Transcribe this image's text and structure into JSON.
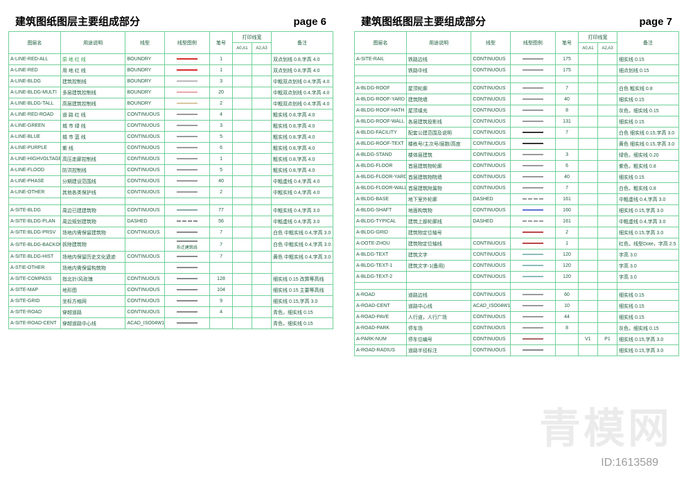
{
  "watermark_main": "青模网",
  "watermark_id": "ID:1613589",
  "header_cols": [
    "图层名",
    "用途说明",
    "线型",
    "线型图例",
    "笔号",
    "A0,A1",
    "A2,A3",
    "备注"
  ],
  "header_group_print": "打印线宽",
  "pages": [
    {
      "title": "建筑图纸图层主要组成部分",
      "pagenum": "page 6",
      "groups": [
        [
          {
            "layer": "A-LINE-RED-ALL",
            "desc": "原 地 红 线",
            "ltype": "BOUNDRY",
            "swatch": "#d62c2c",
            "pen": "1",
            "w1": "",
            "w2": "",
            "note": "双点划线 0.8,字高 4.0",
            "descColor": "#2e9a4a"
          },
          {
            "layer": "A-LINE-RED",
            "desc": "用 地 红 线",
            "ltype": "BOUNDRY",
            "swatch": "#d62c2c",
            "pen": "1",
            "w1": "",
            "w2": "",
            "note": "双点划线 0.8,字高 4.0"
          },
          {
            "layer": "A-LINE-BLDG",
            "desc": "建筑控制线",
            "ltype": "BOUNDRY",
            "swatch": "#b8b8b8",
            "pen": "3",
            "w1": "",
            "w2": "",
            "note": "中粗双点划线 0.4,字高 4.0"
          },
          {
            "layer": "A-LINE-BLDG-MULTI",
            "desc": "多层建筑控制线",
            "ltype": "BOUNDRY",
            "swatch": "#e8a8a8",
            "pen": "20",
            "w1": "",
            "w2": "",
            "note": "中粗双点划线 0.4,字高 4.0"
          },
          {
            "layer": "A-LINE-BLDG-TALL",
            "desc": "高层建筑控制线",
            "ltype": "BOUNDRY",
            "swatch": "#d8c8a0",
            "pen": "2",
            "w1": "",
            "w2": "",
            "note": "中粗双点划线 0.4,字高 4.0"
          },
          {
            "layer": "A-LINE-RED-ROAD",
            "desc": "道 路 红 线",
            "ltype": "CONTINUOUS",
            "swatch": "#999",
            "pen": "4",
            "w1": "",
            "w2": "",
            "note": "粗实线 0.8,字高 4.0"
          },
          {
            "layer": "A-LINE-GREEN",
            "desc": "城 市 绿 线",
            "ltype": "CONTINUOUS",
            "swatch": "#999",
            "pen": "3",
            "w1": "",
            "w2": "",
            "note": "粗实线 0.8,字高 4.0"
          },
          {
            "layer": "A-LINE-BLUE",
            "desc": "城 市 蓝 线",
            "ltype": "CONTINUOUS",
            "swatch": "#999",
            "pen": "5",
            "w1": "",
            "w2": "",
            "note": "粗实线 0.8,字高 4.0"
          },
          {
            "layer": "A-LINE-PURPLE",
            "desc": "紫 线",
            "ltype": "CONTINUOUS",
            "swatch": "#999",
            "pen": "6",
            "w1": "",
            "w2": "",
            "note": "粗实线 0.8,字高 4.0"
          },
          {
            "layer": "A-LINE-HIGHVOLTAGE",
            "desc": "高压走廊控制线",
            "ltype": "CONTINUOUS",
            "swatch": "#999",
            "pen": "1",
            "w1": "",
            "w2": "",
            "note": "粗实线 0.8,字高 4.0"
          },
          {
            "layer": "A-LINE-FLOOD",
            "desc": "防洪控制线",
            "ltype": "CONTINUOUS",
            "swatch": "#999",
            "pen": "5",
            "w1": "",
            "w2": "",
            "note": "粗实线 0.8,字高 4.0"
          },
          {
            "layer": "A-LINE-PHASE",
            "desc": "分期建设范围线",
            "ltype": "CONTINUOUS",
            "swatch": "#999",
            "pen": "40",
            "w1": "",
            "w2": "",
            "note": "中粗虚线 0.4,字高 4.0"
          },
          {
            "layer": "A-LINE-OTHER",
            "desc": "其他各类保护线",
            "ltype": "CONTINUOUS",
            "swatch": "#999",
            "pen": "2",
            "w1": "",
            "w2": "",
            "note": "中粗实线 0.4,字高 4.0"
          }
        ],
        [
          {
            "layer": "A-SITE-BLDG",
            "desc": "周边已建建筑物",
            "ltype": "CONTINUOUS",
            "swatch": "#8aa",
            "pen": "77",
            "w1": "",
            "w2": "",
            "note": "中粗实线 0.4,字高 3.0"
          },
          {
            "layer": "A-SITE-BLDG-PLAN",
            "desc": "周边规划建筑物",
            "ltype": "DASHED",
            "swatch": "#888",
            "pen": "56",
            "w1": "",
            "w2": "",
            "note": "中粗虚线 0.4,字高 3.0"
          },
          {
            "layer": "A-SITE-BLDG-PRSV",
            "desc": "场地内需保留建筑物",
            "ltype": "CONTINUOUS",
            "swatch": "#888",
            "pen": "7",
            "w1": "",
            "w2": "",
            "note": "白色 中粗实线 0.4,字高 3.0"
          },
          {
            "layer": "A-SITE-BLDG-BACKOUT",
            "desc": "拆除建筑物",
            "ltype": "",
            "swatch": "#888",
            "pen": "7",
            "w1": "",
            "w2": "",
            "note": "白色 中粗实线 0.4,字高 3.0",
            "extra": "拆迁建筑线"
          },
          {
            "layer": "A-SITE-BLDG-HIST",
            "desc": "场地内保留历史文化遗迹",
            "ltype": "CONTINUOUS",
            "swatch": "#888",
            "pen": "7",
            "w1": "",
            "w2": "",
            "note": "黄色 中粗实线 0.4,字高 3.0"
          },
          {
            "layer": "A-STIE-OTHER",
            "desc": "场地内需保留构筑物",
            "ltype": "",
            "swatch": "#888",
            "pen": "",
            "w1": "",
            "w2": "",
            "note": ""
          },
          {
            "layer": "A-SITE-COMPASS",
            "desc": "指北针/风玫瑰",
            "ltype": "CONTINUOUS",
            "swatch": "#888",
            "pen": "128",
            "w1": "",
            "w2": "",
            "note": "细实线 0.15 改算等高线"
          },
          {
            "layer": "A-SITE-MAP",
            "desc": "地形图",
            "ltype": "CONTINUOUS",
            "swatch": "#888",
            "pen": "104",
            "w1": "",
            "w2": "",
            "note": "细实线 0.15 主要等高线"
          },
          {
            "layer": "A-SITE-GRID",
            "desc": "坐标方格网",
            "ltype": "CONTINUOUS",
            "swatch": "#888",
            "pen": "9",
            "w1": "",
            "w2": "",
            "note": "细实线 0.15,字高 3.0"
          },
          {
            "layer": "A-SITE-ROAD",
            "desc": "穿越道路",
            "ltype": "CONTINUOUS",
            "swatch": "#888",
            "pen": "4",
            "w1": "",
            "w2": "",
            "note": "青色，细实线 0.15"
          },
          {
            "layer": "A-SITE-ROAD-CENT",
            "desc": "穿越道路中心线",
            "ltype": "ACAD_ISO04W100",
            "swatch": "#888",
            "pen": "",
            "w1": "",
            "w2": "",
            "note": "青色，细实线 0.15"
          }
        ]
      ]
    },
    {
      "title": "建筑图纸图层主要组成部分",
      "pagenum": "page 7",
      "groups": [
        [
          {
            "layer": "A-SITE-RAIL",
            "desc": "铁路边线",
            "ltype": "CONTINUOUS",
            "swatch": "#999",
            "pen": "175",
            "w1": "",
            "w2": "",
            "note": "细实线 0.15"
          },
          {
            "layer": "",
            "desc": "铁路中线",
            "ltype": "CONTINUOUS",
            "swatch": "#999",
            "pen": "175",
            "w1": "",
            "w2": "",
            "note": "细点划线 0.15"
          }
        ],
        [
          {
            "layer": "A-BLDG-ROOF",
            "desc": "屋顶轮廓",
            "ltype": "CONTINUOUS",
            "swatch": "#999",
            "pen": "7",
            "w1": "",
            "w2": "",
            "note": "白色 粗实线 0.8"
          },
          {
            "layer": "A-BLDG-ROOF-YARD",
            "desc": "建筑院墙",
            "ltype": "CONTINUOUS",
            "swatch": "#999",
            "pen": "40",
            "w1": "",
            "w2": "",
            "note": "细实线 0.15"
          },
          {
            "layer": "A-BLDG-ROOF-HATH",
            "desc": "屋顶填充",
            "ltype": "CONTINUOUS",
            "swatch": "#999",
            "pen": "8",
            "w1": "",
            "w2": "",
            "note": "灰色，细实线 0.15"
          },
          {
            "layer": "A-BLDG-ROOF-WALL",
            "desc": "各层建筑投影线",
            "ltype": "CONTINUOUS",
            "swatch": "#999",
            "pen": "131",
            "w1": "",
            "w2": "",
            "note": "细实线 0.15"
          },
          {
            "layer": "A-BLDG-FACILITY",
            "desc": "配套公建范围及说明",
            "ltype": "CONTINUOUS",
            "swatch": "#333",
            "pen": "7",
            "w1": "",
            "w2": "",
            "note": "白色 细实线 0.15,字高 3.0"
          },
          {
            "layer": "A-BLDG-ROOF-TEXT",
            "desc": "楼栋号/主次号/层数/高度",
            "ltype": "CONTINUOUS",
            "swatch": "#333",
            "pen": "",
            "w1": "",
            "w2": "",
            "note": "黄色 细实线 0.15,字高 3.0"
          },
          {
            "layer": "A-BLDG-STAND",
            "desc": "楼体层建筑",
            "ltype": "CONTINUOUS",
            "swatch": "#999",
            "pen": "3",
            "w1": "",
            "w2": "",
            "note": "绿色，细实线 0.20"
          },
          {
            "layer": "A-BLDG-FLOOR",
            "desc": "首层建筑物轮廓",
            "ltype": "CONTINUOUS",
            "swatch": "#999",
            "pen": "6",
            "w1": "",
            "w2": "",
            "note": "紫色，粗实线 0.8"
          },
          {
            "layer": "A-BLDG-FLOOR-YARD",
            "desc": "首层建筑物院墙",
            "ltype": "CONTINUOUS",
            "swatch": "#999",
            "pen": "40",
            "w1": "",
            "w2": "",
            "note": "细实线 0.15"
          },
          {
            "layer": "A-BLDG-FLOOR-WALL",
            "desc": "首层建筑附属物",
            "ltype": "CONTINUOUS",
            "swatch": "#999",
            "pen": "7",
            "w1": "",
            "w2": "",
            "note": "白色，粗实线 0.8"
          },
          {
            "layer": "A-BLDG-BASE",
            "desc": "地下室外轮廓",
            "ltype": "DASHED",
            "swatch": "#999",
            "pen": "161",
            "w1": "",
            "w2": "",
            "note": "中粗虚线 0.4,字高 3.0"
          },
          {
            "layer": "A-BLDG-SHAFT",
            "desc": "地面构筑物",
            "ltype": "CONTINUOUS",
            "swatch": "#5a72d6",
            "pen": "160",
            "w1": "",
            "w2": "",
            "note": "细实线 0.15,字高 3.0"
          },
          {
            "layer": "A-BLDG-TYPICAL",
            "desc": "建筑上部轮廓线",
            "ltype": "DASHED",
            "swatch": "#999",
            "pen": "161",
            "w1": "",
            "w2": "",
            "note": "中粗虚线 0.4,字高 3.0"
          },
          {
            "layer": "A-BLDG-GRID",
            "desc": "建筑物定位轴号",
            "ltype": "",
            "swatch": "#b44",
            "pen": "2",
            "w1": "",
            "w2": "",
            "note": "细实线 0.15,字高 3.0"
          },
          {
            "layer": "A-DOTE-ZHOU",
            "desc": "建筑物定位轴线",
            "ltype": "CONTINUOUS",
            "swatch": "#b44",
            "pen": "1",
            "w1": "",
            "w2": "",
            "note": "红色，线型Dote，字高 2.5"
          },
          {
            "layer": "A-BLDG-TEXT",
            "desc": "建筑文字",
            "ltype": "CONTINUOUS",
            "swatch": "#8bb",
            "pen": "120",
            "w1": "",
            "w2": "",
            "note": "字高 3.0"
          },
          {
            "layer": "A-BLDG-TEXT-1",
            "desc": "建筑文字-1(备用)",
            "ltype": "CONTINUOUS",
            "swatch": "#8bb",
            "pen": "120",
            "w1": "",
            "w2": "",
            "note": "字高 3.0"
          },
          {
            "layer": "A-BLDG-TEXT-2",
            "desc": "",
            "ltype": "CONTINUOUS",
            "swatch": "#8bb",
            "pen": "120",
            "w1": "",
            "w2": "",
            "note": "字高 3.0"
          }
        ],
        [
          {
            "layer": "A-ROAD",
            "desc": "道路边线",
            "ltype": "CONTINUOUS",
            "swatch": "#999",
            "pen": "60",
            "w1": "",
            "w2": "",
            "note": "细实线 0.15"
          },
          {
            "layer": "A-ROAD-CENT",
            "desc": "道路中心线",
            "ltype": "ACAD_ISO04W100",
            "swatch": "#999",
            "pen": "10",
            "w1": "",
            "w2": "",
            "note": "细实线 0.15"
          },
          {
            "layer": "A-ROAD-PAVE",
            "desc": "人行道，人行广场",
            "ltype": "CONTINUOUS",
            "swatch": "#999",
            "pen": "44",
            "w1": "",
            "w2": "",
            "note": "细实线 0.15"
          },
          {
            "layer": "A-ROAD-PARK",
            "desc": "停车场",
            "ltype": "CONTINUOUS",
            "swatch": "#999",
            "pen": "8",
            "w1": "",
            "w2": "",
            "note": "灰色，细实线 0.15"
          },
          {
            "layer": "A-PARK-NUM",
            "desc": "停车位编号",
            "ltype": "CONTINUOUS",
            "swatch": "#a66",
            "pen": "",
            "w1": "V1",
            "w2": "P1",
            "note": "细实线 0.15,字高 3.0"
          },
          {
            "layer": "A-ROAD-RADIUS",
            "desc": "道路半径标注",
            "ltype": "CONTINUOUS",
            "swatch": "#888",
            "pen": "",
            "w1": "",
            "w2": "",
            "note": "细实线 0.15,字高 3.0"
          }
        ]
      ]
    }
  ]
}
